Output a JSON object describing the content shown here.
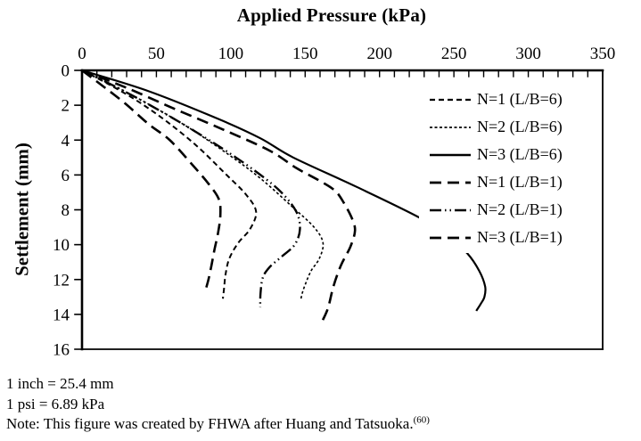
{
  "chart_data": {
    "type": "line",
    "xlabel": "Applied Pressure (kPa)",
    "ylabel": "Settlement (mm)",
    "x_axis_position": "top",
    "y_axis_inverted": true,
    "xlim": [
      0,
      350
    ],
    "ylim": [
      0,
      16
    ],
    "x_ticks": [
      0,
      50,
      100,
      150,
      200,
      250,
      300,
      350
    ],
    "x_minor_tick_step": 10,
    "y_ticks": [
      0,
      2,
      4,
      6,
      8,
      10,
      12,
      14,
      16
    ],
    "grid": false,
    "legend_position": "inside-top-right",
    "line_color": "#000000",
    "background_color": "#ffffff",
    "series": [
      {
        "name": "N=1 (L/B=6)",
        "dash": "medium-dash",
        "points": [
          [
            0,
            0
          ],
          [
            18,
            0.8
          ],
          [
            38,
            1.8
          ],
          [
            58,
            3.0
          ],
          [
            78,
            4.4
          ],
          [
            96,
            5.9
          ],
          [
            110,
            7.1
          ],
          [
            117,
            8.1
          ],
          [
            113,
            9.1
          ],
          [
            105,
            9.9
          ],
          [
            99,
            10.8
          ],
          [
            96.5,
            11.7
          ],
          [
            95.5,
            12.5
          ],
          [
            94.7,
            13.1
          ]
        ]
      },
      {
        "name": "N=2 (L/B=6)",
        "dash": "fine-dash",
        "points": [
          [
            0,
            0
          ],
          [
            22,
            0.9
          ],
          [
            46,
            2.0
          ],
          [
            72,
            3.3
          ],
          [
            98,
            4.8
          ],
          [
            120,
            6.2
          ],
          [
            141,
            7.8
          ],
          [
            156,
            9.0
          ],
          [
            162,
            9.9
          ],
          [
            159.5,
            10.8
          ],
          [
            154,
            11.5
          ],
          [
            150,
            12.3
          ],
          [
            148,
            12.8
          ],
          [
            147,
            13.2
          ]
        ]
      },
      {
        "name": "N=3 (L/B=6)",
        "dash": "solid",
        "points": [
          [
            0,
            0
          ],
          [
            45,
            1.2
          ],
          [
            92,
            2.8
          ],
          [
            120,
            3.9
          ],
          [
            142,
            5.0
          ],
          [
            185,
            6.7
          ],
          [
            228,
            8.5
          ],
          [
            247,
            9.6
          ],
          [
            259,
            10.5
          ],
          [
            267,
            11.5
          ],
          [
            271,
            12.4
          ],
          [
            270.5,
            13.0
          ],
          [
            268,
            13.4
          ],
          [
            265,
            13.8
          ]
        ]
      },
      {
        "name": "N=1 (L/B=1)",
        "dash": "long-dash",
        "points": [
          [
            0,
            0
          ],
          [
            14,
            0.9
          ],
          [
            29,
            1.9
          ],
          [
            45,
            3.1
          ],
          [
            59,
            4.0
          ],
          [
            74,
            5.4
          ],
          [
            85,
            6.5
          ],
          [
            92,
            7.4
          ],
          [
            93,
            8.3
          ],
          [
            91.5,
            9.3
          ],
          [
            89,
            10.3
          ],
          [
            87,
            11.2
          ],
          [
            85,
            12.0
          ],
          [
            82.7,
            12.7
          ]
        ]
      },
      {
        "name": "N=2 (L/B=1)",
        "dash": "dash-dot-dot",
        "points": [
          [
            0,
            0
          ],
          [
            24,
            1.0
          ],
          [
            50,
            2.2
          ],
          [
            76,
            3.5
          ],
          [
            100,
            4.8
          ],
          [
            120,
            6.0
          ],
          [
            134,
            7.0
          ],
          [
            144,
            8.1
          ],
          [
            146.5,
            9.1
          ],
          [
            143,
            10.0
          ],
          [
            134,
            10.7
          ],
          [
            126,
            11.3
          ],
          [
            121.5,
            11.9
          ],
          [
            120,
            12.8
          ],
          [
            119.8,
            13.6
          ]
        ]
      },
      {
        "name": "N=3 (L/B=1)",
        "dash": "long-dash",
        "points": [
          [
            0,
            0
          ],
          [
            30,
            1.0
          ],
          [
            62,
            2.2
          ],
          [
            95,
            3.4
          ],
          [
            126,
            4.6
          ],
          [
            144,
            5.6
          ],
          [
            159,
            6.3
          ],
          [
            170,
            6.9
          ],
          [
            176,
            7.6
          ],
          [
            181.5,
            8.5
          ],
          [
            183.5,
            9.2
          ],
          [
            180.5,
            10.1
          ],
          [
            174,
            11.2
          ],
          [
            169,
            12.4
          ],
          [
            165.5,
            13.6
          ],
          [
            162,
            14.3
          ],
          [
            160,
            14.6
          ]
        ]
      }
    ]
  },
  "footer": {
    "line1": "1 inch = 25.4 mm",
    "line2": "1 psi = 6.89 kPa",
    "note_text": "Note: This figure was created by FHWA after Huang and Tatsuoka.",
    "note_ref": "(60)"
  },
  "colors": {
    "foreground": "#000000",
    "background": "#ffffff"
  }
}
